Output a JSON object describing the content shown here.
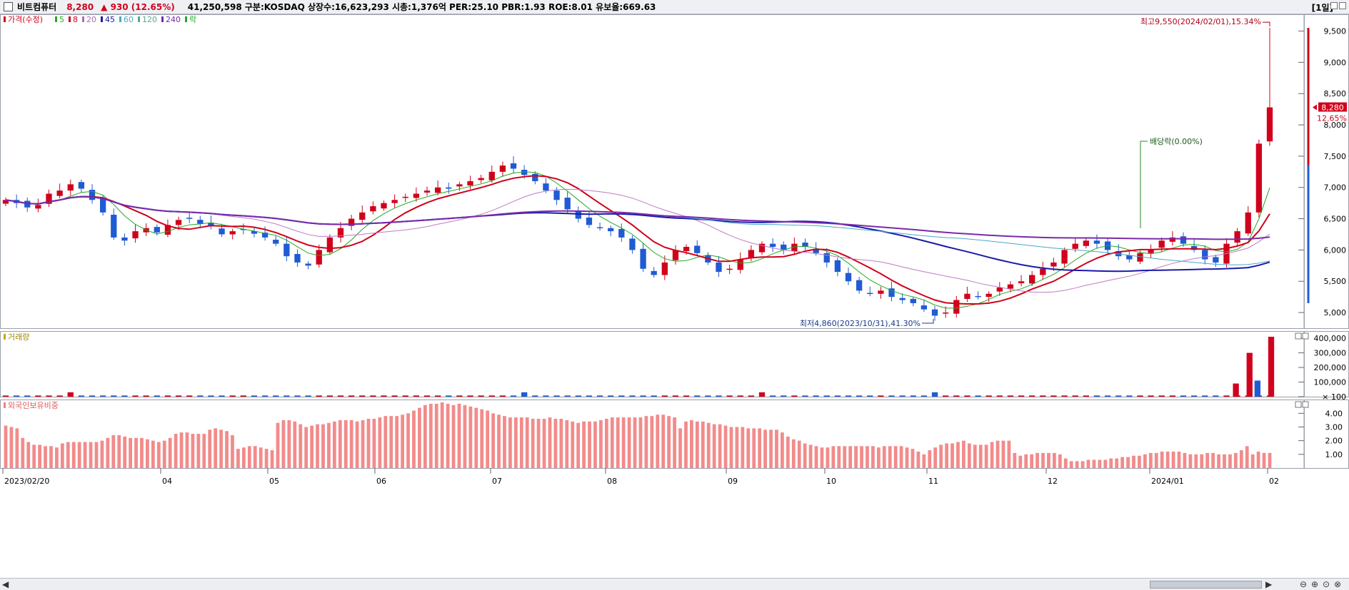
{
  "header": {
    "stock_name": "비트컴퓨터",
    "price": "8,280",
    "change": "▲ 930 (12.65%)",
    "info": "41,250,598  구분:KOSDAQ 상장수:16,623,293 시총:1,376억 PER:25.10 PBR:1.93 ROE:8.01 유보율:669.63",
    "period": "[1일]"
  },
  "price_panel": {
    "legend": [
      {
        "label": "가격(수정)",
        "color": "#d0021b"
      },
      {
        "label": "5",
        "color": "#22aa22"
      },
      {
        "label": "8",
        "color": "#d0021b"
      },
      {
        "label": "20",
        "color": "#b06ab3"
      },
      {
        "label": "45",
        "color": "#1a1aaa"
      },
      {
        "label": "60",
        "color": "#4aa8c8"
      },
      {
        "label": "120",
        "color": "#5aa88a"
      },
      {
        "label": "240",
        "color": "#7a2aaa"
      },
      {
        "label": "락",
        "color": "#22aa22"
      }
    ],
    "high_annotation": "최고9,550(2024/02/01),15.34%",
    "low_annotation": "최저4,860(2023/10/31),41.30%",
    "dividend_annotation": "배당락(0.00%)",
    "current_price_label": "8,280",
    "current_change_label": "12.65%"
  },
  "volume_panel": {
    "legend": "거래량"
  },
  "foreign_panel": {
    "legend": "외국인보유비중"
  },
  "colors": {
    "up": "#d0021b",
    "down": "#1f5bd4",
    "grid": "#c8c8c8"
  },
  "chart_data": [
    {
      "type": "candlestick",
      "title": "가격(수정)",
      "yticks": [
        5000,
        5500,
        6000,
        6500,
        7000,
        7500,
        8000,
        8500,
        9000,
        9500
      ],
      "ylim": [
        4750,
        9700
      ],
      "x_labels": [
        "2023/02/20",
        "04",
        "05",
        "06",
        "07",
        "08",
        "09",
        "10",
        "11",
        "12",
        "2024/01",
        "02"
      ],
      "high": {
        "value": 9550,
        "date": "2024/02/01",
        "pct": 15.34
      },
      "low": {
        "value": 4860,
        "date": "2023/10/31",
        "pct": 41.3
      },
      "last_close": 8280,
      "close_series": [
        6800,
        6750,
        6680,
        6720,
        6900,
        6950,
        7050,
        6980,
        6800,
        6600,
        6200,
        6150,
        6300,
        6350,
        6280,
        6400,
        6480,
        6500,
        6420,
        6380,
        6250,
        6300,
        6320,
        6260,
        6200,
        6100,
        5900,
        5800,
        5750,
        6000,
        6200,
        6350,
        6500,
        6600,
        6700,
        6750,
        6800,
        6850,
        6900,
        6950,
        7000,
        6980,
        7050,
        7100,
        7150,
        7250,
        7350,
        7300,
        7200,
        7100,
        6950,
        6800,
        6650,
        6500,
        6400,
        6350,
        6300,
        6200,
        6000,
        5700,
        5600,
        5800,
        6000,
        6050,
        5950,
        5800,
        5650,
        5700,
        5850,
        6000,
        6100,
        6050,
        6000,
        6100,
        6050,
        5950,
        5800,
        5650,
        5500,
        5350,
        5300,
        5350,
        5250,
        5200,
        5150,
        5050,
        4950,
        5000,
        5200,
        5300,
        5250,
        5300,
        5400,
        5450,
        5500,
        5600,
        5700,
        5800,
        6000,
        6100,
        6150,
        6100,
        6000,
        5900,
        5850,
        5950,
        6000,
        6150,
        6200,
        6100,
        6000,
        5850,
        5800,
        6100,
        6300,
        6600,
        7700,
        8280
      ],
      "ma_lengths": [
        5,
        8,
        20,
        45,
        60,
        120,
        240
      ]
    },
    {
      "type": "bar",
      "title": "거래량",
      "yticks": [
        100,
        100000,
        200000,
        300000,
        400000
      ],
      "ytick_labels": [
        "× 100",
        "100,000",
        "200,000",
        "300,000",
        "400,000"
      ],
      "ylim": [
        0,
        420000
      ],
      "notable_bars": [
        {
          "x": "2024/01/29",
          "value": 90000
        },
        {
          "x": "2024/01/31",
          "value": 300000
        },
        {
          "x": "2024/02/01",
          "value": 110000
        },
        {
          "x": "2024/02/02",
          "value": 410000
        }
      ],
      "baseline_value": 8000
    },
    {
      "type": "bar",
      "title": "외국인보유비중",
      "yticks": [
        1.0,
        2.0,
        3.0,
        4.0
      ],
      "ytick_labels": [
        "1.00",
        "2.00",
        "3.00",
        "4.00"
      ],
      "ylim": [
        0,
        4.8
      ],
      "values": [
        3.1,
        3.0,
        2.9,
        2.2,
        1.9,
        1.7,
        1.7,
        1.6,
        1.6,
        1.5,
        1.8,
        1.9,
        1.9,
        1.9,
        1.9,
        1.9,
        1.9,
        2.0,
        2.2,
        2.4,
        2.4,
        2.3,
        2.2,
        2.2,
        2.2,
        2.1,
        2.0,
        1.9,
        2.0,
        2.2,
        2.5,
        2.6,
        2.6,
        2.5,
        2.5,
        2.5,
        2.8,
        2.9,
        2.8,
        2.7,
        2.4,
        1.4,
        1.5,
        1.6,
        1.6,
        1.5,
        1.4,
        1.3,
        3.3,
        3.5,
        3.5,
        3.4,
        3.2,
        3.0,
        3.1,
        3.2,
        3.2,
        3.3,
        3.4,
        3.5,
        3.5,
        3.5,
        3.4,
        3.5,
        3.6,
        3.6,
        3.7,
        3.8,
        3.8,
        3.8,
        3.9,
        4.0,
        4.2,
        4.4,
        4.6,
        4.7,
        4.7,
        4.8,
        4.7,
        4.6,
        4.7,
        4.6,
        4.5,
        4.4,
        4.3,
        4.2,
        4.0,
        3.9,
        3.8,
        3.7,
        3.7,
        3.7,
        3.7,
        3.6,
        3.6,
        3.6,
        3.7,
        3.6,
        3.6,
        3.5,
        3.4,
        3.3,
        3.4,
        3.4,
        3.4,
        3.5,
        3.6,
        3.7,
        3.7,
        3.7,
        3.7,
        3.7,
        3.7,
        3.8,
        3.8,
        3.9,
        3.9,
        3.8,
        3.7,
        2.9,
        3.4,
        3.5,
        3.4,
        3.4,
        3.3,
        3.2,
        3.2,
        3.1,
        3.0,
        3.0,
        3.0,
        2.9,
        2.9,
        2.9,
        2.8,
        2.8,
        2.8,
        2.6,
        2.3,
        2.1,
        2.0,
        1.8,
        1.7,
        1.6,
        1.5,
        1.5,
        1.6,
        1.6,
        1.6,
        1.6,
        1.6,
        1.6,
        1.6,
        1.6,
        1.5,
        1.6,
        1.6,
        1.6,
        1.6,
        1.5,
        1.4,
        1.2,
        1.0,
        1.3,
        1.5,
        1.7,
        1.8,
        1.8,
        1.9,
        2.0,
        1.8,
        1.7,
        1.7,
        1.7,
        1.9,
        2.0,
        2.0,
        2.0,
        1.1,
        0.9,
        1.0,
        1.0,
        1.1,
        1.1,
        1.1,
        1.1,
        1.0,
        0.7,
        0.5,
        0.5,
        0.5,
        0.6,
        0.6,
        0.6,
        0.6,
        0.7,
        0.7,
        0.8,
        0.8,
        0.9,
        0.9,
        1.0,
        1.1,
        1.1,
        1.2,
        1.2,
        1.2,
        1.2,
        1.1,
        1.0,
        1.0,
        1.0,
        1.1,
        1.1,
        1.0,
        1.0,
        1.0,
        1.1,
        1.3,
        1.6,
        1.0,
        1.2,
        1.1,
        1.1
      ]
    }
  ]
}
